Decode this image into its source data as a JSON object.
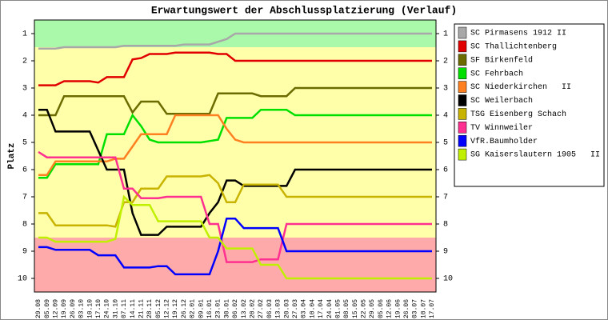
{
  "chart_data": {
    "type": "line",
    "title": "Erwartungswert der Abschlussplatzierung (Verlauf)",
    "y_label": "Platz",
    "categories": [
      "29.08",
      "05.09",
      "12.09",
      "19.09",
      "26.09",
      "03.10",
      "10.10",
      "17.10",
      "24.10",
      "31.10",
      "07.11",
      "14.11",
      "21.11",
      "28.11",
      "05.12",
      "12.12",
      "19.12",
      "26.12",
      "02.01",
      "09.01",
      "16.01",
      "23.01",
      "30.01",
      "06.02",
      "13.02",
      "20.02",
      "27.02",
      "06.03",
      "13.03",
      "20.03",
      "27.03",
      "03.04",
      "10.04",
      "17.04",
      "24.04",
      "01.05",
      "08.05",
      "15.05",
      "22.05",
      "29.05",
      "05.06",
      "12.06",
      "19.06",
      "26.06",
      "03.07",
      "10.07",
      "17.07"
    ],
    "ylim": [
      10.5,
      0.5
    ],
    "yticks": [
      1,
      2,
      3,
      4,
      5,
      6,
      7,
      8,
      9,
      10
    ],
    "legend": "right",
    "series": [
      {
        "name": "SC Pirmasens 1912 II",
        "color": "#a8a8a8",
        "values": [
          1.55,
          1.55,
          1.55,
          1.5,
          1.5,
          1.5,
          1.5,
          1.5,
          1.5,
          1.5,
          1.45,
          1.45,
          1.45,
          1.45,
          1.45,
          1.45,
          1.45,
          1.4,
          1.4,
          1.4,
          1.4,
          1.3,
          1.2,
          1.0,
          1.0,
          1.0,
          1.0,
          1.0,
          1.0,
          1.0,
          1.0,
          1.0,
          1.0,
          1.0,
          1.0,
          1.0,
          1.0,
          1.0,
          1.0,
          1.0,
          1.0,
          1.0,
          1.0,
          1.0,
          1.0,
          1.0,
          1.0
        ]
      },
      {
        "name": "SC Thallichtenberg",
        "color": "#e00000",
        "values": [
          2.9,
          2.9,
          2.9,
          2.75,
          2.75,
          2.75,
          2.75,
          2.8,
          2.6,
          2.6,
          2.6,
          1.95,
          1.9,
          1.75,
          1.75,
          1.75,
          1.7,
          1.7,
          1.7,
          1.7,
          1.7,
          1.75,
          1.75,
          2.0,
          2.0,
          2.0,
          2.0,
          2.0,
          2.0,
          2.0,
          2.0,
          2.0,
          2.0,
          2.0,
          2.0,
          2.0,
          2.0,
          2.0,
          2.0,
          2.0,
          2.0,
          2.0,
          2.0,
          2.0,
          2.0,
          2.0,
          2.0
        ]
      },
      {
        "name": "SF Birkenfeld",
        "color": "#6b6b00",
        "values": [
          4.0,
          4.0,
          4.0,
          3.3,
          3.3,
          3.3,
          3.3,
          3.3,
          3.3,
          3.3,
          3.3,
          3.9,
          3.5,
          3.5,
          3.5,
          3.95,
          3.95,
          3.95,
          3.95,
          3.95,
          3.95,
          3.2,
          3.2,
          3.2,
          3.2,
          3.2,
          3.3,
          3.3,
          3.3,
          3.3,
          3.0,
          3.0,
          3.0,
          3.0,
          3.0,
          3.0,
          3.0,
          3.0,
          3.0,
          3.0,
          3.0,
          3.0,
          3.0,
          3.0,
          3.0,
          3.0,
          3.0
        ]
      },
      {
        "name": "SC Fehrbach",
        "color": "#00e000",
        "values": [
          6.3,
          6.3,
          5.8,
          5.8,
          5.8,
          5.8,
          5.8,
          5.8,
          4.7,
          4.7,
          4.7,
          4.0,
          4.4,
          4.9,
          5.0,
          5.0,
          5.0,
          5.0,
          5.0,
          5.0,
          4.95,
          4.9,
          4.1,
          4.1,
          4.1,
          4.1,
          3.8,
          3.8,
          3.8,
          3.8,
          4.0,
          4.0,
          4.0,
          4.0,
          4.0,
          4.0,
          4.0,
          4.0,
          4.0,
          4.0,
          4.0,
          4.0,
          4.0,
          4.0,
          4.0,
          4.0,
          4.0
        ]
      },
      {
        "name": "SC Niederkirchen   II",
        "color": "#ff8020",
        "values": [
          6.2,
          6.2,
          5.7,
          5.7,
          5.7,
          5.7,
          5.7,
          5.7,
          5.7,
          5.6,
          5.6,
          5.15,
          4.7,
          4.7,
          4.7,
          4.7,
          4.0,
          4.0,
          4.0,
          4.0,
          4.0,
          4.0,
          4.5,
          4.9,
          5.0,
          5.0,
          5.0,
          5.0,
          5.0,
          5.0,
          5.0,
          5.0,
          5.0,
          5.0,
          5.0,
          5.0,
          5.0,
          5.0,
          5.0,
          5.0,
          5.0,
          5.0,
          5.0,
          5.0,
          5.0,
          5.0,
          5.0
        ]
      },
      {
        "name": "SC Weilerbach",
        "color": "#000000",
        "values": [
          3.8,
          3.8,
          4.6,
          4.6,
          4.6,
          4.6,
          4.6,
          5.3,
          6.0,
          6.0,
          6.0,
          7.6,
          8.4,
          8.4,
          8.4,
          8.1,
          8.1,
          8.1,
          8.1,
          8.1,
          7.6,
          7.2,
          6.4,
          6.4,
          6.6,
          6.6,
          6.6,
          6.6,
          6.6,
          6.6,
          6.0,
          6.0,
          6.0,
          6.0,
          6.0,
          6.0,
          6.0,
          6.0,
          6.0,
          6.0,
          6.0,
          6.0,
          6.0,
          6.0,
          6.0,
          6.0,
          6.0
        ]
      },
      {
        "name": "TSG Eisenberg Schach",
        "color": "#c8b400",
        "values": [
          7.6,
          7.6,
          8.05,
          8.05,
          8.05,
          8.05,
          8.05,
          8.05,
          8.05,
          8.1,
          7.2,
          7.2,
          6.7,
          6.7,
          6.7,
          6.25,
          6.25,
          6.25,
          6.25,
          6.25,
          6.2,
          6.5,
          7.2,
          7.2,
          6.55,
          6.55,
          6.55,
          6.55,
          6.55,
          7.0,
          7.0,
          7.0,
          7.0,
          7.0,
          7.0,
          7.0,
          7.0,
          7.0,
          7.0,
          7.0,
          7.0,
          7.0,
          7.0,
          7.0,
          7.0,
          7.0,
          7.0
        ]
      },
      {
        "name": "TV Winnweiler",
        "color": "#ff3090",
        "values": [
          5.35,
          5.55,
          5.55,
          5.55,
          5.55,
          5.55,
          5.55,
          5.55,
          5.55,
          5.55,
          6.7,
          6.7,
          7.05,
          7.05,
          7.05,
          7.0,
          7.0,
          7.0,
          7.0,
          7.0,
          8.0,
          8.0,
          9.4,
          9.4,
          9.4,
          9.4,
          9.3,
          9.3,
          9.3,
          8.0,
          8.0,
          8.0,
          8.0,
          8.0,
          8.0,
          8.0,
          8.0,
          8.0,
          8.0,
          8.0,
          8.0,
          8.0,
          8.0,
          8.0,
          8.0,
          8.0,
          8.0
        ]
      },
      {
        "name": "VfR.Baumholder",
        "color": "#0000ff",
        "values": [
          8.85,
          8.85,
          8.95,
          8.95,
          8.95,
          8.95,
          8.95,
          9.15,
          9.15,
          9.15,
          9.6,
          9.6,
          9.6,
          9.6,
          9.55,
          9.55,
          9.85,
          9.85,
          9.85,
          9.85,
          9.85,
          9.0,
          7.8,
          7.8,
          8.15,
          8.15,
          8.15,
          8.15,
          8.15,
          9.0,
          9.0,
          9.0,
          9.0,
          9.0,
          9.0,
          9.0,
          9.0,
          9.0,
          9.0,
          9.0,
          9.0,
          9.0,
          9.0,
          9.0,
          9.0,
          9.0,
          9.0
        ]
      },
      {
        "name": "SG Kaiserslautern 1905   II",
        "color": "#c0f000",
        "values": [
          8.5,
          8.5,
          8.65,
          8.65,
          8.65,
          8.65,
          8.65,
          8.65,
          8.65,
          8.55,
          7.0,
          7.3,
          7.3,
          7.3,
          7.9,
          7.9,
          7.9,
          7.9,
          7.9,
          7.9,
          8.5,
          8.5,
          8.9,
          8.9,
          8.9,
          8.9,
          9.5,
          9.5,
          9.5,
          10.0,
          10.0,
          10.0,
          10.0,
          10.0,
          10.0,
          10.0,
          10.0,
          10.0,
          10.0,
          10.0,
          10.0,
          10.0,
          10.0,
          10.0,
          10.0,
          10.0,
          10.0
        ]
      }
    ]
  }
}
